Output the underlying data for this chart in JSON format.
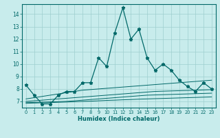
{
  "title": "",
  "xlabel": "Humidex (Indice chaleur)",
  "background_color": "#c8ecec",
  "grid_color": "#9ecece",
  "line_color": "#006868",
  "xlim": [
    -0.5,
    23.5
  ],
  "ylim": [
    6.5,
    14.8
  ],
  "yticks": [
    7,
    8,
    9,
    10,
    11,
    12,
    13,
    14
  ],
  "xticks": [
    0,
    1,
    2,
    3,
    4,
    5,
    6,
    7,
    8,
    9,
    10,
    11,
    12,
    13,
    14,
    15,
    16,
    17,
    18,
    19,
    20,
    21,
    22,
    23
  ],
  "main_series": [
    8.3,
    7.5,
    6.8,
    6.8,
    7.5,
    7.8,
    7.8,
    8.5,
    8.5,
    10.5,
    9.8,
    12.5,
    14.5,
    12.0,
    12.8,
    10.5,
    9.5,
    10.0,
    9.5,
    8.7,
    8.2,
    7.8,
    8.5,
    8.0
  ],
  "flat_lines": [
    [
      7.2,
      7.3,
      7.4,
      7.5,
      7.6,
      7.7,
      7.8,
      7.9,
      7.95,
      8.0,
      8.05,
      8.1,
      8.15,
      8.2,
      8.25,
      8.3,
      8.35,
      8.4,
      8.45,
      8.5,
      8.55,
      8.6,
      8.65,
      8.7
    ],
    [
      7.0,
      7.05,
      7.1,
      7.15,
      7.2,
      7.25,
      7.3,
      7.35,
      7.4,
      7.45,
      7.5,
      7.55,
      7.6,
      7.65,
      7.7,
      7.75,
      7.8,
      7.82,
      7.84,
      7.86,
      7.88,
      7.9,
      7.92,
      7.94
    ],
    [
      6.9,
      6.92,
      6.94,
      6.96,
      6.98,
      7.0,
      7.05,
      7.1,
      7.15,
      7.2,
      7.25,
      7.3,
      7.35,
      7.4,
      7.45,
      7.5,
      7.52,
      7.54,
      7.56,
      7.58,
      7.6,
      7.62,
      7.64,
      7.66
    ],
    [
      6.85,
      6.87,
      6.89,
      6.91,
      6.93,
      6.95,
      6.97,
      7.0,
      7.02,
      7.05,
      7.08,
      7.1,
      7.13,
      7.15,
      7.18,
      7.2,
      7.22,
      7.24,
      7.26,
      7.28,
      7.3,
      7.32,
      7.34,
      7.36
    ]
  ]
}
